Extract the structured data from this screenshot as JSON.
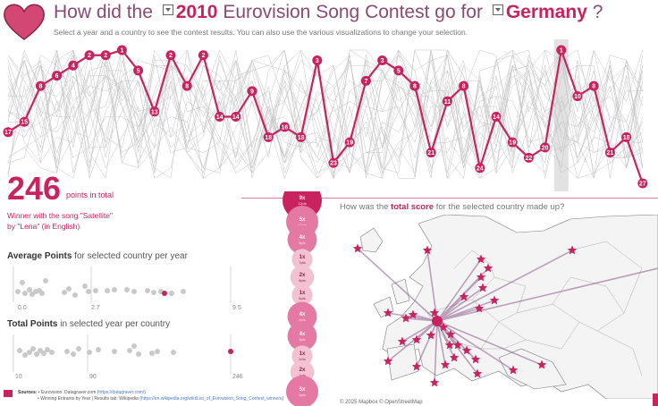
{
  "header": {
    "title_prefix": "How did the",
    "year": "2010",
    "title_middle": "Eurovision Song Contest go for",
    "country": "Germany",
    "title_suffix": "?",
    "subtitle": "Select a year and a country to see  the contest results. You can also use the various visualizations to change your selection."
  },
  "colors": {
    "accent": "#c8235e",
    "title": "#8a4a73",
    "bubble": "#e47aa3",
    "grey": "#bdbdbd"
  },
  "chart_data": {
    "type": "line",
    "title": "",
    "description_none": "",
    "series": [
      {
        "values": [
          17,
          15,
          8,
          6,
          4,
          2,
          2,
          1,
          5,
          13,
          2,
          8,
          2,
          14,
          14,
          9,
          18,
          16,
          18,
          3,
          23,
          19,
          7,
          3,
          5,
          8,
          21,
          11,
          8,
          24,
          14,
          19,
          22,
          20,
          1,
          10,
          8,
          21,
          18,
          27
        ]
      }
    ],
    "highlight_index": 34,
    "y_inverted": true
  },
  "summary": {
    "total_points": "246",
    "total_label": "points in total",
    "winner_line1": "Winner with the song \"Satellite\"",
    "winner_line2": "by \"Lena\" (in English)"
  },
  "avg_section": {
    "title_bold": "Average Points",
    "title_rest": " for selected country per year",
    "ticks": [
      "0.0",
      "2.7",
      "9.5"
    ]
  },
  "total_section": {
    "title_bold": "Total Points",
    "title_rest": " in selected year per country",
    "ticks": [
      "10",
      "90",
      "246"
    ]
  },
  "points_breakdown": [
    {
      "count": "9x",
      "unit": "12pts",
      "level": 1.0
    },
    {
      "count": "5x",
      "unit": "10pts",
      "level": 0.75
    },
    {
      "count": "4x",
      "unit": "8pts",
      "level": 0.65
    },
    {
      "count": "1x",
      "unit": "7pts",
      "level": 0.35
    },
    {
      "count": "2x",
      "unit": "6pts",
      "level": 0.45
    },
    {
      "count": "1x",
      "unit": "5pts",
      "level": 0.35
    },
    {
      "count": "4x",
      "unit": "4pts",
      "level": 0.65
    },
    {
      "count": "4x",
      "unit": "3pts",
      "level": 0.65
    },
    {
      "count": "1x",
      "unit": "2pts",
      "level": 0.35
    },
    {
      "count": "2x",
      "unit": "1pts",
      "level": 0.45
    },
    {
      "count": "5x",
      "unit": "0pts",
      "level": 0.75
    }
  ],
  "map": {
    "title_prefix": "How was the",
    "title_bold": "total score",
    "title_suffix": "for the selected country made up?",
    "credit": "© 2025 Mapbox  © OpenStreetMap"
  },
  "footer": {
    "sources_label": "Sources:",
    "line1_text": "• Eurovision: Datagraver.com (",
    "line1_link": "https://datagraver.com/",
    "line2_text": "• Winning Entrants by Year | Results tab: Wikipedia (",
    "line2_link": "https://en.wikipedia.org/wiki/List_of_Eurovision_Song_Contest_winners",
    "close": ")"
  }
}
